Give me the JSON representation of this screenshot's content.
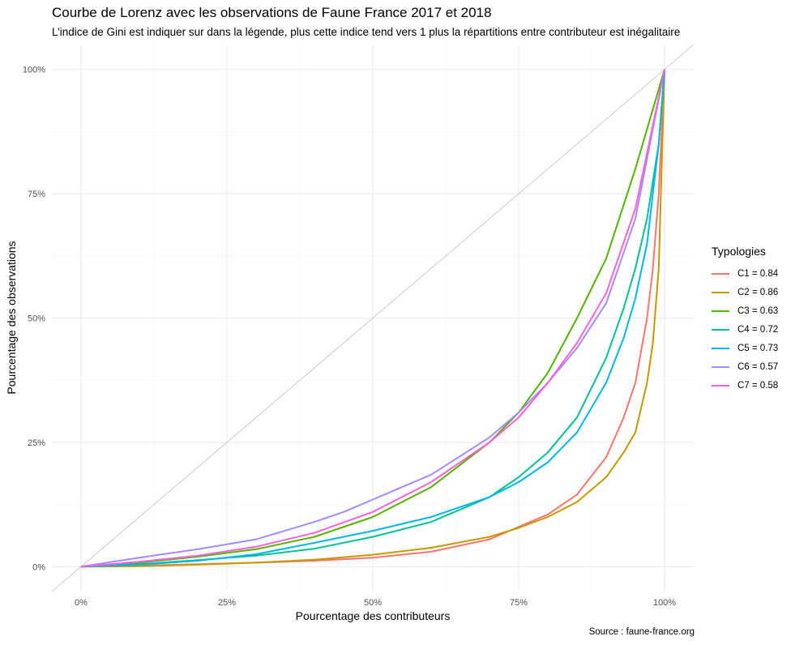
{
  "chart": {
    "title": "Courbe de Lorenz avec les observations de Faune France 2017 et 2018",
    "subtitle": "L’indice de Gini est indiquer sur dans la légende, plus cette indice tend vers 1 plus la répartitions entre contributeur est inégalitaire",
    "caption": "Source : faune-france.org",
    "legend_title": "Typologies"
  },
  "chart_data": {
    "type": "line",
    "title": "Courbe de Lorenz avec les observations de Faune France 2017 et 2018",
    "xlabel": "Pourcentage des contributeurs",
    "ylabel": "Pourcentage des observations",
    "xlim": [
      -0.05,
      1.05
    ],
    "ylim": [
      -0.05,
      1.05
    ],
    "x_ticks": [
      "0%",
      "25%",
      "50%",
      "75%",
      "100%"
    ],
    "y_ticks": [
      "0%",
      "25%",
      "50%",
      "75%",
      "100%"
    ],
    "grid": true,
    "legend_position": "right",
    "reference_line": "y = x",
    "series": [
      {
        "name": "C1 = 0.84",
        "color": "#F8766D",
        "x": [
          0,
          0.1,
          0.2,
          0.3,
          0.4,
          0.5,
          0.6,
          0.7,
          0.75,
          0.8,
          0.85,
          0.9,
          0.93,
          0.95,
          0.97,
          0.98,
          0.99,
          1.0
        ],
        "y": [
          0,
          0.002,
          0.005,
          0.008,
          0.012,
          0.018,
          0.03,
          0.055,
          0.08,
          0.105,
          0.145,
          0.22,
          0.3,
          0.37,
          0.5,
          0.6,
          0.75,
          1.0
        ]
      },
      {
        "name": "C2 = 0.86",
        "color": "#C49A00",
        "x": [
          0,
          0.1,
          0.2,
          0.3,
          0.4,
          0.5,
          0.6,
          0.7,
          0.75,
          0.8,
          0.85,
          0.9,
          0.93,
          0.95,
          0.97,
          0.98,
          0.99,
          1.0
        ],
        "y": [
          0,
          0.001,
          0.004,
          0.008,
          0.014,
          0.024,
          0.038,
          0.06,
          0.078,
          0.1,
          0.13,
          0.18,
          0.23,
          0.27,
          0.37,
          0.45,
          0.6,
          1.0
        ]
      },
      {
        "name": "C3 = 0.63",
        "color": "#53B400",
        "x": [
          0,
          0.1,
          0.2,
          0.3,
          0.4,
          0.5,
          0.6,
          0.7,
          0.75,
          0.8,
          0.85,
          0.9,
          0.95,
          1.0
        ],
        "y": [
          0,
          0.008,
          0.02,
          0.035,
          0.06,
          0.1,
          0.16,
          0.25,
          0.31,
          0.39,
          0.5,
          0.62,
          0.8,
          1.0
        ]
      },
      {
        "name": "C4 = 0.72",
        "color": "#00C094",
        "x": [
          0,
          0.1,
          0.2,
          0.3,
          0.4,
          0.5,
          0.6,
          0.7,
          0.75,
          0.8,
          0.85,
          0.9,
          0.93,
          0.95,
          0.97,
          0.99,
          1.0
        ],
        "y": [
          0,
          0.005,
          0.013,
          0.022,
          0.036,
          0.06,
          0.09,
          0.14,
          0.18,
          0.23,
          0.3,
          0.42,
          0.52,
          0.6,
          0.7,
          0.85,
          1.0
        ]
      },
      {
        "name": "C5 = 0.73",
        "color": "#00B6EB",
        "x": [
          0,
          0.1,
          0.2,
          0.3,
          0.4,
          0.5,
          0.6,
          0.7,
          0.75,
          0.8,
          0.85,
          0.9,
          0.93,
          0.95,
          0.97,
          0.99,
          1.0
        ],
        "y": [
          0,
          0.004,
          0.012,
          0.025,
          0.048,
          0.072,
          0.1,
          0.14,
          0.17,
          0.21,
          0.27,
          0.37,
          0.46,
          0.54,
          0.65,
          0.85,
          1.0
        ]
      },
      {
        "name": "C6 = 0.57",
        "color": "#A58AFF",
        "x": [
          0,
          0.1,
          0.2,
          0.3,
          0.4,
          0.45,
          0.5,
          0.6,
          0.7,
          0.75,
          0.8,
          0.85,
          0.9,
          0.95,
          1.0
        ],
        "y": [
          0,
          0.018,
          0.035,
          0.055,
          0.09,
          0.11,
          0.135,
          0.185,
          0.26,
          0.31,
          0.37,
          0.44,
          0.53,
          0.7,
          1.0
        ]
      },
      {
        "name": "C7 = 0.58",
        "color": "#FB61D7",
        "x": [
          0,
          0.1,
          0.2,
          0.3,
          0.4,
          0.5,
          0.6,
          0.7,
          0.75,
          0.8,
          0.85,
          0.9,
          0.95,
          1.0
        ],
        "y": [
          0,
          0.01,
          0.022,
          0.04,
          0.068,
          0.11,
          0.17,
          0.25,
          0.3,
          0.37,
          0.45,
          0.55,
          0.72,
          1.0
        ]
      }
    ]
  }
}
